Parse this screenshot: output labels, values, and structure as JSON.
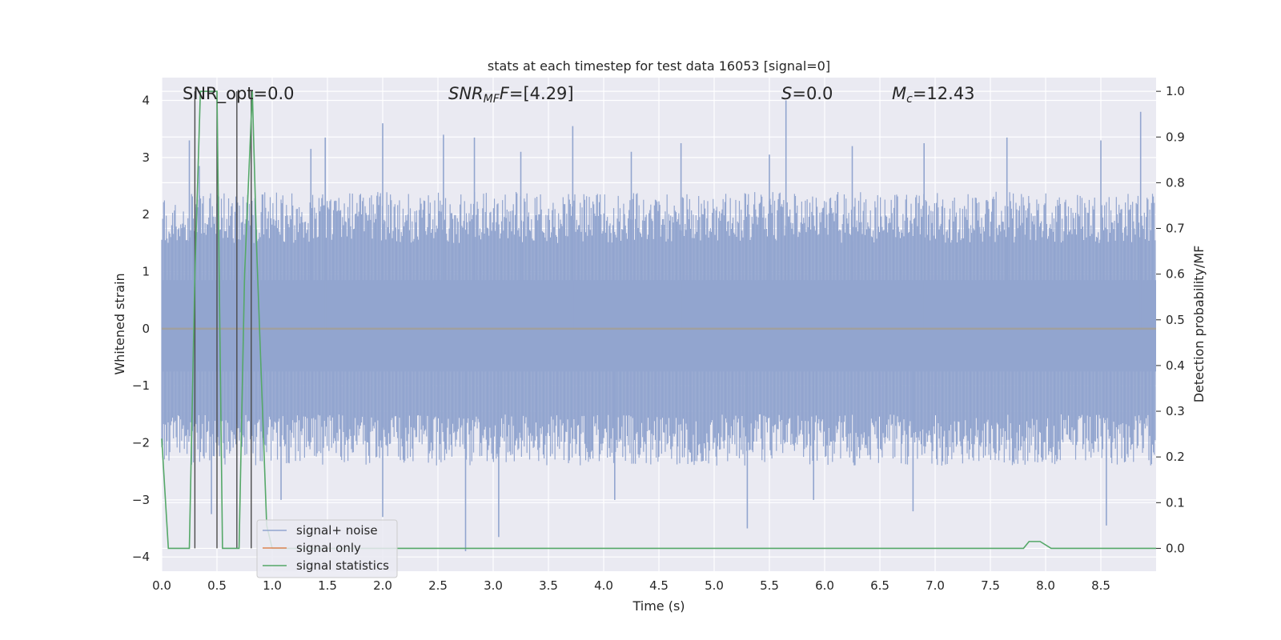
{
  "chart_data": {
    "type": "line",
    "title": "stats at each timestep for test data 16053 [signal=0]",
    "xlabel": "Time (s)",
    "ylabel_left": "Whitened strain",
    "ylabel_right": "Detection probability/MF",
    "xlim": [
      0.0,
      9.0
    ],
    "ylim_left": [
      -4.25,
      4.4
    ],
    "ylim_right": [
      -0.05,
      1.03
    ],
    "x_ticks": [
      "0.0",
      "0.5",
      "1.0",
      "1.5",
      "2.0",
      "2.5",
      "3.0",
      "3.5",
      "4.0",
      "4.5",
      "5.0",
      "5.5",
      "6.0",
      "6.5",
      "7.0",
      "7.5",
      "8.0",
      "8.5"
    ],
    "y_ticks_left": [
      "−4",
      "−3",
      "−2",
      "−1",
      "0",
      "1",
      "2",
      "3",
      "4"
    ],
    "y_ticks_right": [
      "0.0",
      "0.1",
      "0.2",
      "0.3",
      "0.4",
      "0.5",
      "0.6",
      "0.7",
      "0.8",
      "0.9",
      "1.0"
    ],
    "grid": true,
    "legend_position": "lower-left",
    "annotations": {
      "snr_opt": "SNR_opt=0.0",
      "snr_mf_base": "SNR",
      "snr_mf_sub": "MF",
      "snr_mf_tail": "=[4.29]",
      "s_label": "S",
      "s_tail": "=0.0",
      "mc_base": "M",
      "mc_sub": "c",
      "mc_tail": "=12.43"
    },
    "series": [
      {
        "name": "signal+ noise",
        "color": "#92a5cf",
        "axis": "left",
        "envelope_abs": 1.5,
        "spikes": [
          [
            0.25,
            3.3
          ],
          [
            0.34,
            2.85
          ],
          [
            1.35,
            3.15
          ],
          [
            1.48,
            3.35
          ],
          [
            2.0,
            3.6
          ],
          [
            2.55,
            3.4
          ],
          [
            2.83,
            3.35
          ],
          [
            3.25,
            3.1
          ],
          [
            3.72,
            3.55
          ],
          [
            4.25,
            3.1
          ],
          [
            4.7,
            3.25
          ],
          [
            5.5,
            3.05
          ],
          [
            5.65,
            4.0
          ],
          [
            6.25,
            3.2
          ],
          [
            6.9,
            3.25
          ],
          [
            7.65,
            3.35
          ],
          [
            8.5,
            3.3
          ],
          [
            8.86,
            3.8
          ],
          [
            1.08,
            -3.0
          ],
          [
            2.0,
            -3.3
          ],
          [
            2.75,
            -3.9
          ],
          [
            3.05,
            -3.65
          ],
          [
            5.3,
            -3.5
          ],
          [
            5.9,
            -3.0
          ],
          [
            6.8,
            -3.2
          ],
          [
            8.55,
            -3.45
          ],
          [
            0.45,
            -3.25
          ],
          [
            4.1,
            -3.0
          ]
        ]
      },
      {
        "name": "signal only",
        "color": "#dd8452",
        "axis": "left",
        "x": [
          0.0,
          9.0
        ],
        "y": [
          0.0,
          0.0
        ]
      },
      {
        "name": "signal statistics",
        "color": "#55a868",
        "axis": "right",
        "x": [
          0.0,
          0.06,
          0.1,
          0.18,
          0.25,
          0.3,
          0.35,
          0.5,
          0.55,
          0.7,
          0.75,
          0.82,
          0.86,
          0.95,
          1.0,
          1.05,
          3.0,
          7.8,
          7.85,
          7.9,
          7.95,
          8.05,
          9.0
        ],
        "y": [
          0.24,
          0.0,
          0.0,
          0.0,
          0.0,
          0.6,
          1.0,
          1.0,
          0.0,
          0.0,
          0.6,
          1.0,
          0.65,
          0.05,
          0.0,
          0.0,
          0.0,
          0.0,
          0.015,
          0.015,
          0.015,
          0.0,
          0.0
        ]
      }
    ],
    "vertical_markers_x": [
      0.3,
      0.5,
      0.68,
      0.81
    ]
  }
}
